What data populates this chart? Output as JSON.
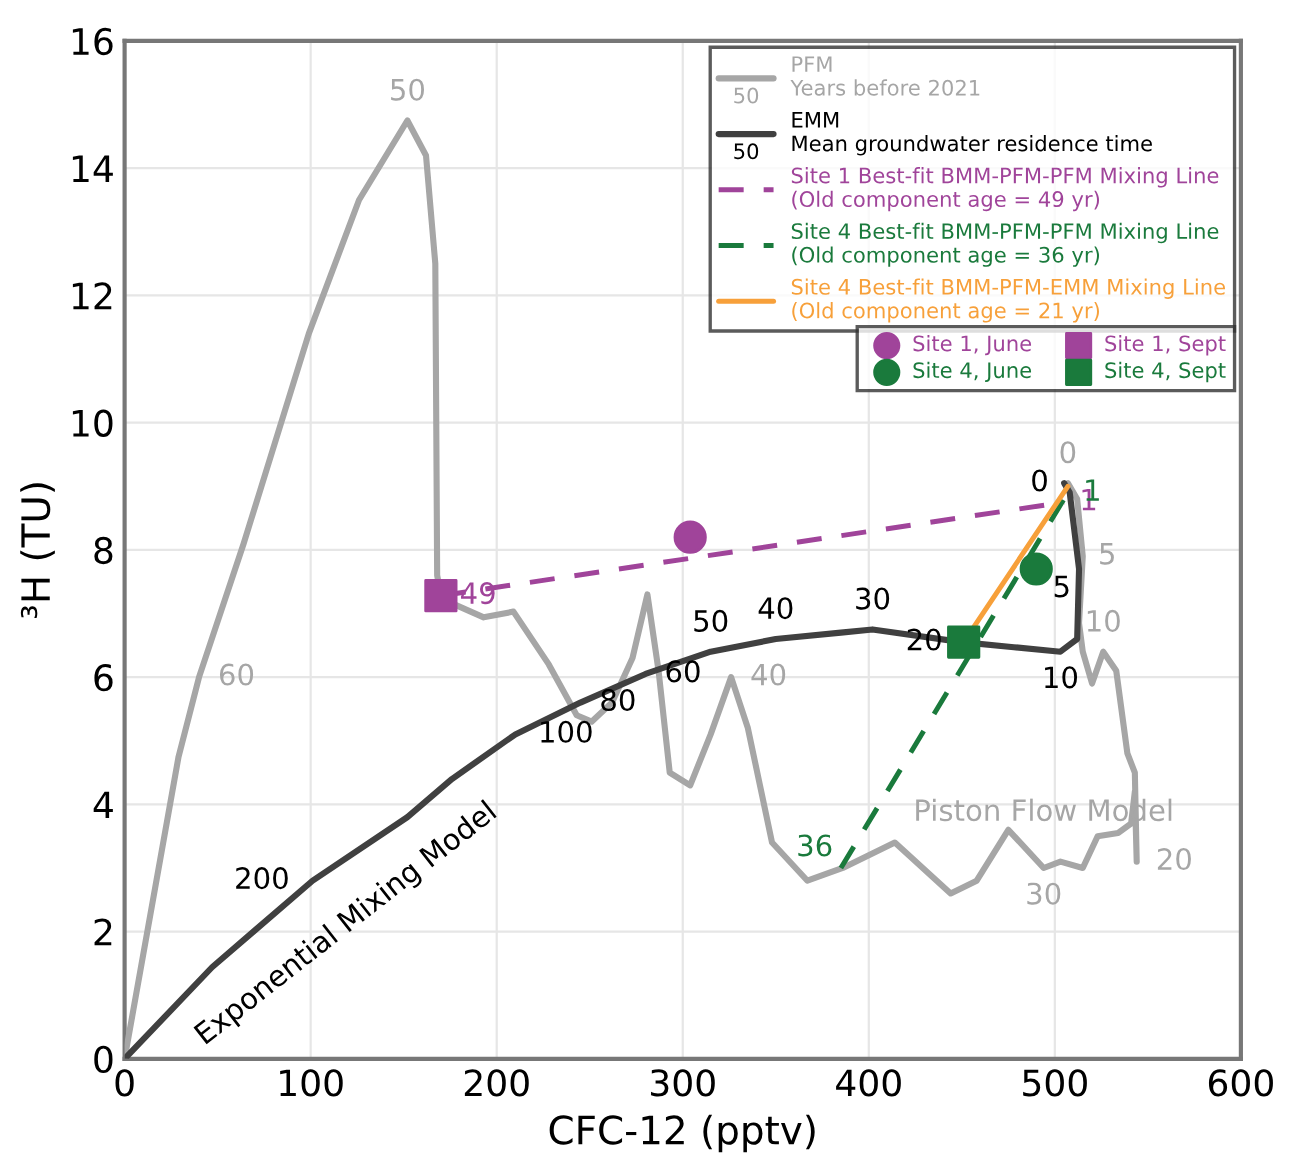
{
  "chart_data": {
    "type": "line",
    "xlabel": "CFC-12 (pptv)",
    "ylabel": "³H (TU)",
    "xlim": [
      0,
      600
    ],
    "ylim": [
      0,
      16
    ],
    "xticks": [
      0,
      100,
      200,
      300,
      400,
      500,
      600
    ],
    "yticks": [
      0,
      2,
      4,
      6,
      8,
      10,
      12,
      14,
      16
    ],
    "grid": true,
    "legend": "top right",
    "line_style": "solid",
    "marker": "none",
    "annotations": [
      "50",
      "50",
      {
        "text": "0",
        "x": 507,
        "y": 9.05
      },
      {
        "text": "5",
        "x": 515,
        "y": 7.9
      },
      {
        "text": "10",
        "x": 526,
        "y": 6.4
      },
      {
        "text": "20",
        "x": 544,
        "y": 3.1
      },
      {
        "text": "30",
        "x": 494,
        "y": 3.0
      },
      {
        "text": "40",
        "x": 326,
        "y": 6.0
      },
      {
        "text": "50",
        "x": 152,
        "y": 14.75
      },
      {
        "text": "60",
        "x": 40,
        "y": 6.0
      },
      {
        "text": "Piston Flow Model",
        "x": 494,
        "y": 3.0
      },
      {
        "text": "0",
        "x": 505,
        "y": 9.05
      },
      {
        "text": "5",
        "x": 513,
        "y": 7.7
      },
      {
        "text": "10",
        "x": 503,
        "y": 6.4
      },
      {
        "text": "20",
        "x": 450,
        "y": 6.55
      },
      {
        "text": "30",
        "x": 402,
        "y": 6.75
      },
      {
        "text": "40",
        "x": 350,
        "y": 6.6
      },
      {
        "text": "50",
        "x": 315,
        "y": 6.4
      },
      {
        "text": "60",
        "x": 280,
        "y": 6.05
      },
      {
        "text": "80",
        "x": 245,
        "y": 5.6
      },
      {
        "text": "100",
        "x": 210,
        "y": 5.1
      },
      {
        "text": "200",
        "x": 101,
        "y": 2.8
      },
      {
        "text": "Exponential Mixing Model",
        "x": 101,
        "y": 2.8
      },
      {
        "text": "49",
        "x": 170,
        "y": 7.28
      },
      {
        "text": "1",
        "x": 505,
        "y": 8.75
      },
      {
        "text": "36",
        "x": 385,
        "y": 3.0
      },
      {
        "text": "1",
        "x": 507,
        "y": 8.9
      }
    ],
    "series": [
      {
        "name": "PFM\nYears before 2021",
        "color": "#a6a6a6",
        "x": [
          0,
          29,
          40,
          64,
          99,
          126,
          152,
          162,
          167,
          168,
          170,
          176,
          193,
          209,
          228,
          243,
          251,
          262,
          273,
          281,
          287,
          293,
          304,
          315,
          326,
          335,
          348,
          367,
          386,
          414,
          444,
          458,
          475,
          494,
          503,
          515,
          523,
          534,
          541,
          543,
          544,
          543,
          539,
          533,
          526,
          520,
          515,
          513,
          515,
          512,
          507
        ],
        "values": [
          0,
          4.75,
          6.0,
          8.1,
          11.4,
          13.5,
          14.75,
          14.2,
          12.5,
          7.6,
          7.28,
          7.16,
          6.94,
          7.03,
          6.2,
          5.4,
          5.3,
          5.6,
          6.3,
          7.3,
          6.1,
          4.5,
          4.3,
          5.1,
          6.0,
          5.2,
          3.4,
          2.8,
          3.0,
          3.4,
          2.6,
          2.8,
          3.6,
          3.0,
          3.1,
          3.0,
          3.5,
          3.55,
          3.7,
          4.2,
          3.1,
          4.5,
          4.8,
          6.1,
          6.4,
          5.9,
          6.4,
          6.85,
          7.9,
          8.8,
          9.05
        ]
      },
      {
        "name": "EMM\nMean groundwater residence time",
        "color": "#404040",
        "x": [
          0,
          47,
          101,
          152,
          176,
          210,
          245,
          280,
          315,
          350,
          385,
          402,
          450,
          478,
          503,
          512,
          513,
          508,
          505
        ],
        "values": [
          0,
          1.44,
          2.8,
          3.8,
          4.4,
          5.1,
          5.6,
          6.05,
          6.4,
          6.6,
          6.7,
          6.75,
          6.55,
          6.47,
          6.4,
          6.6,
          7.7,
          8.9,
          9.05
        ]
      },
      {
        "name": "Site 1 Best-fit BMM-PFM-PFM Mixing Line\n(Old component age = 49 yr)",
        "color": "#a0449a",
        "line_style": "dashed",
        "x": [
          170,
          505
        ],
        "values": [
          7.28,
          8.75
        ]
      },
      {
        "name": "Site 4 Best-fit BMM-PFM-PFM Mixing Line\n(Old component age = 36 yr)",
        "color": "#1a7a3c",
        "line_style": "dashed",
        "x": [
          385,
          507
        ],
        "values": [
          3.0,
          8.9
        ]
      },
      {
        "name": "Site 4 Best-fit BMM-PFM-EMM Mixing Line\n(Old component age = 21 yr)",
        "color": "#f7a03a",
        "x": [
          451,
          507
        ],
        "values": [
          6.55,
          9.0
        ]
      },
      {
        "name": "Site 1, June",
        "type": "scatter",
        "marker": "circle",
        "color": "#a0449a",
        "x": [
          304
        ],
        "values": [
          8.2
        ]
      },
      {
        "name": "Site 4, June",
        "type": "scatter",
        "marker": "circle",
        "color": "#1a7a3c",
        "x": [
          490
        ],
        "values": [
          7.7
        ]
      },
      {
        "name": "Site 1, Sept",
        "type": "scatter",
        "marker": "square",
        "color": "#a0449a",
        "x": [
          170
        ],
        "values": [
          7.28
        ]
      },
      {
        "name": "Site 4, Sept",
        "type": "scatter",
        "marker": "square",
        "color": "#1a7a3c",
        "x": [
          451
        ],
        "values": [
          6.55
        ]
      }
    ]
  }
}
